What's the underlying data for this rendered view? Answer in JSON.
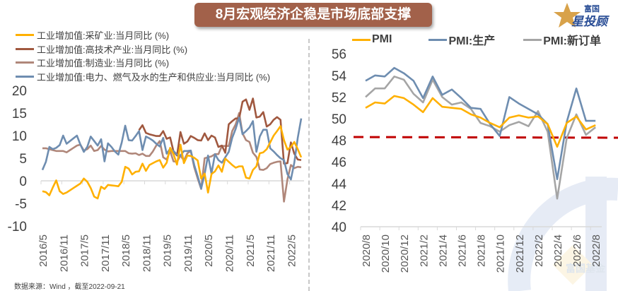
{
  "title": "8月宏观经济企稳是市场底部支撑",
  "logo": {
    "top_text": "富国",
    "main_text": "星投顾",
    "watermark_text": "富国基金"
  },
  "source_note": "数据来源：Wind ，截至2022-09-21",
  "colors": {
    "mining": "#FFB000",
    "hightech": "#A0583F",
    "manufacturing": "#B0877A",
    "power": "#6E8DB0",
    "pmi": "#FFB000",
    "production": "#6E8DB0",
    "new_orders": "#A5A5A5",
    "reference": "#C00000",
    "title_bg": "#A2614A"
  },
  "chart_data": [
    {
      "type": "line",
      "x_start": "2016/5",
      "x_end": "2022/8",
      "frequency": "monthly",
      "x_tick_labels": [
        "2016/5",
        "2016/11",
        "2017/5",
        "2017/11",
        "2018/5",
        "2018/11",
        "2019/5",
        "2019/11",
        "2020/5",
        "2020/11",
        "2021/5",
        "2021/11",
        "2022/5"
      ],
      "y_tick_labels": [
        "20",
        "15",
        "10",
        "5",
        "0",
        "-5",
        "-10"
      ],
      "ylim": [
        -10,
        20
      ],
      "grid": false,
      "legend_position": "top-left",
      "series": [
        {
          "name": "工业增加值:采矿业:当月同比 (%)",
          "color_key": "mining",
          "values": [
            -2.3,
            -2.5,
            -3.2,
            -1.5,
            0.1,
            -2.3,
            -2.9,
            -2.6,
            -2.1,
            -1.6,
            -1.1,
            -0.6,
            0.5,
            -0.2,
            -1.6,
            -3.5,
            -3.9,
            -1.3,
            -1.8,
            -0.9,
            -1.0,
            -1.1,
            -1.2,
            -0.2,
            3.1,
            2.7,
            1.4,
            2.0,
            2.1,
            3.8,
            2.2,
            3.5,
            3.9,
            4.3,
            4.6,
            2.9,
            4.0,
            7.3,
            5.9,
            3.6,
            8.0,
            3.9,
            5.6,
            5.5,
            5.1,
            4.5,
            0.5,
            1.6,
            -2.6,
            1.5,
            2.1,
            3.4,
            2.0,
            4.9,
            4.2,
            3.5,
            2.9,
            3.2,
            3.2,
            0.7,
            0.5,
            2.4,
            3.2,
            6.1,
            6.3,
            7.0,
            8.5,
            10.0,
            11.0,
            12.1,
            9.0,
            6.9,
            7.5,
            8.6,
            7.0,
            5.2
          ]
        },
        {
          "name": "工业增加值:高技术产业:当月同比 (%)",
          "color_key": "hightech",
          "values": [
            null,
            null,
            null,
            null,
            null,
            null,
            null,
            null,
            null,
            null,
            null,
            null,
            null,
            null,
            null,
            null,
            null,
            null,
            null,
            null,
            null,
            null,
            null,
            null,
            null,
            null,
            null,
            null,
            11.2,
            12.3,
            10.6,
            10.3,
            10.1,
            9.9,
            9.9,
            11.0,
            9.3,
            9.6,
            6.5,
            5.6,
            10.8,
            8.2,
            8.7,
            9.9,
            9.5,
            9.0,
            8.9,
            10.5,
            9.0,
            10.0,
            9.6,
            7.5,
            7.8,
            6.2,
            12.5,
            13.2,
            13.8,
            13.8,
            17.5,
            18.0,
            15.7,
            18.2,
            14.0,
            14.2,
            15.2,
            12.0,
            12.5,
            13.5,
            14.1,
            13.5,
            3.8,
            3.9,
            8.5,
            6.0,
            4.7,
            4.6
          ]
        },
        {
          "name": "工业增加值:制造业:当月同比 (%)",
          "color_key": "manufacturing",
          "values": [
            7.2,
            7.2,
            7.0,
            6.8,
            6.6,
            6.6,
            6.6,
            6.3,
            6.8,
            7.3,
            7.8,
            8.0,
            6.7,
            7.0,
            7.8,
            6.6,
            6.8,
            7.7,
            6.9,
            6.5,
            6.6,
            6.6,
            6.6,
            6.6,
            6.6,
            6.1,
            6.0,
            6.1,
            5.7,
            6.0,
            5.5,
            5.5,
            6.5,
            7.8,
            8.8,
            5.2,
            4.7,
            6.6,
            4.3,
            4.2,
            5.6,
            4.5,
            6.1,
            6.6,
            3.0,
            0.5,
            -1.8,
            5.0,
            5.2,
            5.4,
            5.9,
            5.9,
            7.7,
            7.7,
            7.7,
            11.0,
            12.5,
            15.0,
            10.5,
            9.0,
            8.6,
            6.2,
            5.3,
            2.5,
            2.4,
            2.8,
            3.7,
            4.0,
            4.2,
            4.3,
            -4.6,
            0.3,
            3.5,
            2.8,
            3.1,
            3.0
          ]
        },
        {
          "name": "工业增加值:电力、燃气及水的生产和供应业:当月同比 (%)",
          "color_key": "power",
          "values": [
            2.4,
            4.2,
            7.5,
            7.0,
            7.3,
            7.9,
            10.0,
            8.2,
            8.8,
            9.4,
            10.0,
            8.0,
            6.4,
            7.5,
            9.8,
            8.8,
            7.8,
            9.2,
            4.3,
            8.3,
            7.5,
            6.5,
            5.8,
            8.5,
            12.2,
            9.0,
            8.9,
            9.9,
            11.0,
            6.8,
            9.8,
            9.4,
            8.9,
            8.2,
            7.6,
            9.5,
            6.0,
            7.1,
            6.6,
            5.8,
            5.6,
            6.6,
            6.6,
            6.7,
            3.5,
            1.0,
            -1.7,
            1.5,
            5.6,
            1.6,
            5.9,
            4.6,
            4.0,
            5.2,
            6.4,
            9.5,
            11.5,
            14.0,
            10.3,
            11.0,
            11.8,
            13.2,
            6.4,
            9.8,
            11.3,
            11.3,
            7.2,
            6.5,
            5.7,
            5.0,
            4.6,
            1.5,
            0.3,
            4.0,
            9.5,
            13.8
          ]
        }
      ]
    },
    {
      "type": "line",
      "categories": [
        "2020/8",
        "2020/9",
        "2020/10",
        "2020/11",
        "2020/12",
        "2021/1",
        "2021/2",
        "2021/3",
        "2021/4",
        "2021/5",
        "2021/6",
        "2021/7",
        "2021/8",
        "2021/9",
        "2021/10",
        "2021/11",
        "2021/12",
        "2022/1",
        "2022/2",
        "2022/3",
        "2022/4",
        "2022/5",
        "2022/6",
        "2022/7",
        "2022/8"
      ],
      "x_tick_labels": [
        "2020/8",
        "2020/10",
        "2020/12",
        "2021/2",
        "2021/4",
        "2021/6",
        "2021/8",
        "2021/10",
        "2021/12",
        "2022/2",
        "2022/4",
        "2022/6",
        "2022/8"
      ],
      "y_tick_labels": [
        "56",
        "54",
        "52",
        "50",
        "48",
        "46",
        "44",
        "42",
        "40"
      ],
      "ylim": [
        40,
        56
      ],
      "grid": false,
      "legend_position": "top",
      "reference_line": {
        "value": 48.3,
        "style": "dashed",
        "color_key": "reference"
      },
      "series": [
        {
          "name": "PMI",
          "color_key": "pmi",
          "values": [
            51.0,
            51.5,
            51.4,
            52.1,
            51.9,
            51.3,
            50.6,
            51.9,
            51.1,
            51.0,
            50.9,
            50.4,
            50.1,
            49.6,
            49.2,
            50.1,
            50.3,
            50.1,
            50.2,
            49.5,
            47.4,
            49.6,
            50.2,
            49.0,
            49.4
          ]
        },
        {
          "name": "PMI:生产",
          "color_key": "production",
          "values": [
            53.5,
            54.0,
            53.9,
            54.7,
            54.2,
            53.5,
            51.9,
            53.9,
            52.2,
            52.7,
            51.9,
            51.0,
            50.9,
            49.5,
            48.4,
            52.0,
            51.4,
            50.9,
            50.4,
            49.5,
            44.4,
            49.7,
            52.8,
            49.8,
            49.8
          ]
        },
        {
          "name": "PMI:新订单",
          "color_key": "new_orders",
          "values": [
            52.0,
            52.8,
            52.8,
            53.9,
            53.6,
            52.3,
            51.5,
            53.6,
            52.0,
            51.3,
            51.5,
            50.9,
            49.6,
            49.3,
            48.8,
            49.4,
            49.7,
            49.3,
            50.7,
            48.8,
            42.6,
            48.2,
            50.4,
            48.5,
            49.2
          ]
        }
      ]
    }
  ]
}
